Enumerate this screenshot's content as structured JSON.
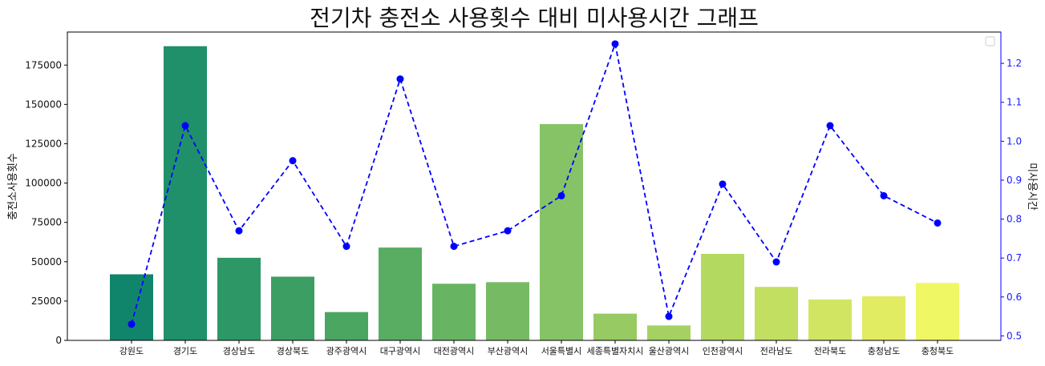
{
  "chart_data": {
    "type": "bar+line",
    "title": "전기차 충전소 사용횟수 대비 미사용시간 그래프",
    "categories": [
      "강원도",
      "경기도",
      "경상남도",
      "경상북도",
      "광주광역시",
      "대구광역시",
      "대전광역시",
      "부산광역시",
      "서울특별시",
      "세종특별자치시",
      "울산광역시",
      "인천광역시",
      "전라남도",
      "전라북도",
      "충청남도",
      "충청북도"
    ],
    "bar_series": {
      "values": [
        42000,
        187000,
        52500,
        40500,
        18000,
        59000,
        36000,
        37000,
        137500,
        17000,
        9500,
        55000,
        34000,
        26000,
        28000,
        36500
      ],
      "colors": [
        "#10856b",
        "#1f9069",
        "#2d9766",
        "#3d9e63",
        "#4ba662",
        "#58ad62",
        "#67b563",
        "#76bb64",
        "#86c366",
        "#97ca63",
        "#a5d162",
        "#b3d960",
        "#c2df62",
        "#d2e562",
        "#e1ec63",
        "#eff764"
      ]
    },
    "line_series": {
      "values": [
        0.53,
        1.04,
        0.77,
        0.95,
        0.73,
        1.16,
        0.73,
        0.77,
        0.86,
        1.25,
        0.55,
        0.89,
        0.69,
        1.04,
        0.86,
        0.79
      ],
      "color": "#0000ff"
    },
    "ylabel_left": "충전소사용횟수",
    "ylabel_right": "미사용시간",
    "ylim_left": [
      0,
      196000
    ],
    "yticks_left": [
      "0",
      "25000",
      "50000",
      "75000",
      "100000",
      "125000",
      "150000",
      "175000"
    ],
    "ylim_right": [
      0.4885,
      1.2805
    ],
    "yticks_right": [
      "0.5",
      "0.6",
      "0.7",
      "0.8",
      "0.9",
      "1.0",
      "1.1",
      "1.2"
    ],
    "legend": "empty, upper right",
    "grid": false
  }
}
